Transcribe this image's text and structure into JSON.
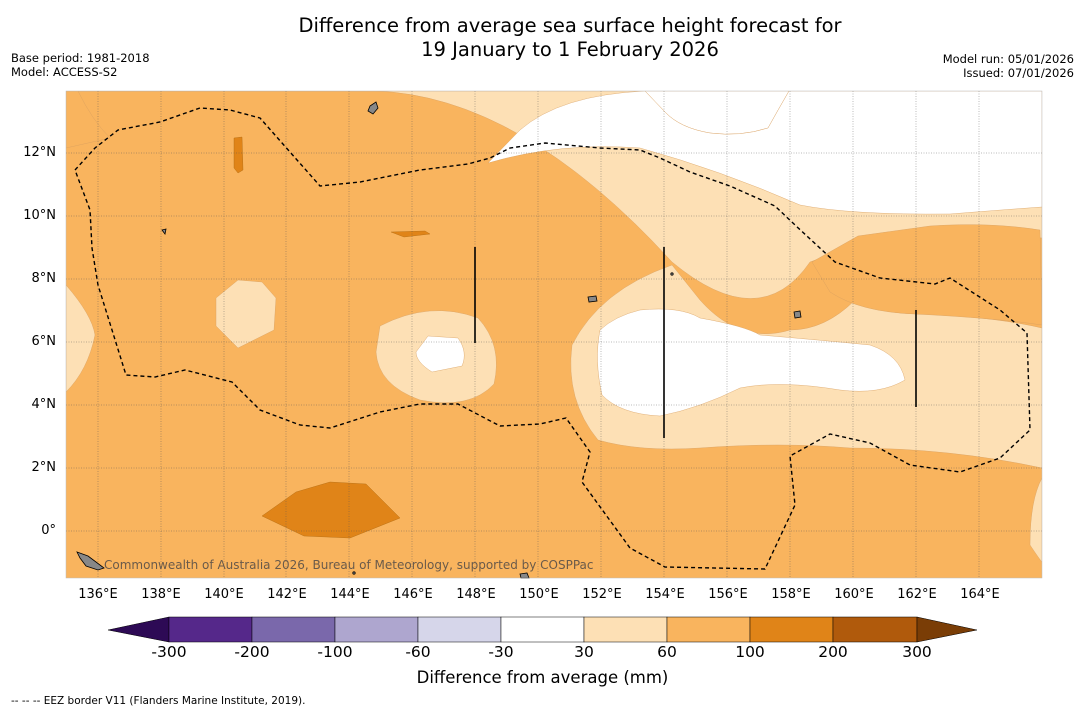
{
  "title": {
    "line1": "Difference from average sea surface height forecast for",
    "line2": "19 January to 1 February 2026"
  },
  "meta_left": {
    "base_period": "Base period: 1981-2018",
    "model": "Model: ACCESS-S2"
  },
  "meta_right": {
    "model_run": "Model run: 05/01/2026",
    "issued": "Issued: 07/01/2026"
  },
  "map": {
    "longitude_labels": [
      "136°E",
      "138°E",
      "140°E",
      "142°E",
      "144°E",
      "146°E",
      "148°E",
      "150°E",
      "152°E",
      "154°E",
      "156°E",
      "158°E",
      "160°E",
      "162°E",
      "164°E"
    ],
    "latitude_labels": [
      "12°N",
      "10°N",
      "8°N",
      "6°N",
      "4°N",
      "2°N",
      "0°"
    ],
    "credit": "Commonwealth of Australia 2026, Bureau of Meteorology, supported by COSPPac"
  },
  "colorbar": {
    "labels": [
      "-300",
      "-200",
      "-100",
      "-60",
      "-30",
      "30",
      "60",
      "100",
      "200",
      "300"
    ],
    "colors": {
      "below": "#2d0a55",
      "bins": [
        "#55288a",
        "#7a68ab",
        "#aea6cf",
        "#d6d6ea",
        "#ffffff",
        "#fde0b5",
        "#f9b45e",
        "#e08418",
        "#b05a0c"
      ],
      "above": "#7a3d06"
    },
    "title": "Difference from average (mm)"
  },
  "legend_note": "--  --  -- EEZ border V11 (Flanders Marine Institute, 2019)."
}
